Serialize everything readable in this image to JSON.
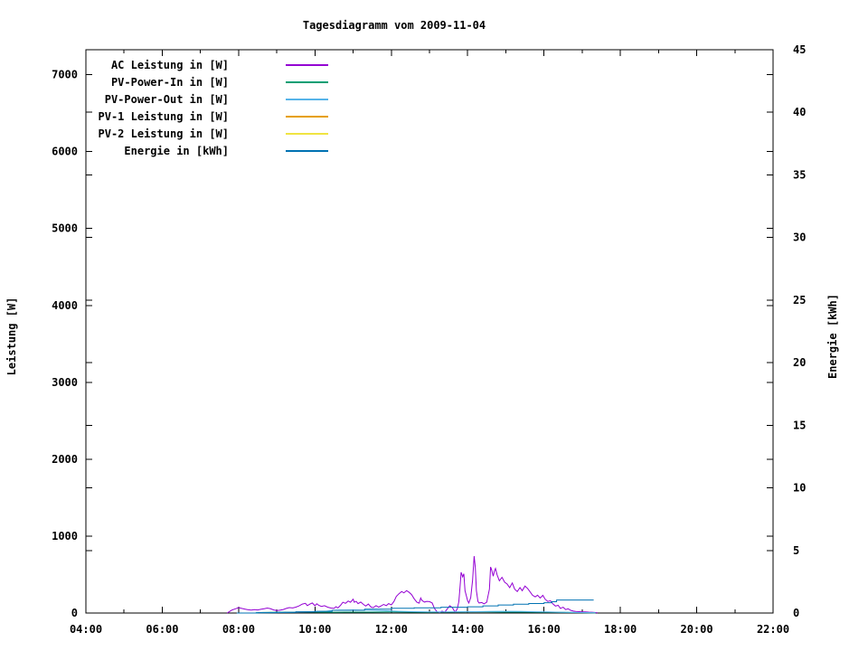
{
  "title": "Tagesdiagramm vom 2009-11-04",
  "colors": {
    "background": "#ffffff",
    "axis": "#000000"
  },
  "chart_data": {
    "type": "line",
    "title": "Tagesdiagramm vom 2009-11-04",
    "grid": false,
    "legend_position": "top-left",
    "x_axis": {
      "unit": "hour of day",
      "range": [
        4,
        22
      ],
      "major_ticks": [
        {
          "v": 4,
          "label": "04:00"
        },
        {
          "v": 6,
          "label": "06:00"
        },
        {
          "v": 8,
          "label": "08:00"
        },
        {
          "v": 10,
          "label": "10:00"
        },
        {
          "v": 12,
          "label": "12:00"
        },
        {
          "v": 14,
          "label": "14:00"
        },
        {
          "v": 16,
          "label": "16:00"
        },
        {
          "v": 18,
          "label": "18:00"
        },
        {
          "v": 20,
          "label": "20:00"
        },
        {
          "v": 22,
          "label": "22:00"
        }
      ],
      "minor_ticks": [
        5,
        7,
        9,
        11,
        13,
        15,
        17,
        19,
        21
      ]
    },
    "y_axis_left": {
      "label": "Leistung [W]",
      "range": [
        0,
        7325
      ],
      "ticks": [
        {
          "v": 0,
          "label": "0"
        },
        {
          "v": 1000,
          "label": "1000"
        },
        {
          "v": 2000,
          "label": "2000"
        },
        {
          "v": 3000,
          "label": "3000"
        },
        {
          "v": 4000,
          "label": "4000"
        },
        {
          "v": 5000,
          "label": "5000"
        },
        {
          "v": 6000,
          "label": "6000"
        },
        {
          "v": 7000,
          "label": "7000"
        }
      ]
    },
    "y_axis_right": {
      "label": "Energie [kWh]",
      "range": [
        0,
        45
      ],
      "ticks": [
        {
          "v": 0,
          "label": "0"
        },
        {
          "v": 5,
          "label": "5"
        },
        {
          "v": 10,
          "label": "10"
        },
        {
          "v": 15,
          "label": "15"
        },
        {
          "v": 20,
          "label": "20"
        },
        {
          "v": 25,
          "label": "25"
        },
        {
          "v": 30,
          "label": "30"
        },
        {
          "v": 35,
          "label": "35"
        },
        {
          "v": 40,
          "label": "40"
        },
        {
          "v": 45,
          "label": "45"
        }
      ]
    },
    "series": [
      {
        "name": "AC Leistung in [W]",
        "color": "#9400D3",
        "axis": "left",
        "render": "line",
        "points": [
          [
            7.7,
            0
          ],
          [
            7.75,
            15
          ],
          [
            7.83,
            40
          ],
          [
            7.92,
            55
          ],
          [
            8.0,
            70
          ],
          [
            8.08,
            60
          ],
          [
            8.17,
            50
          ],
          [
            8.25,
            42
          ],
          [
            8.33,
            38
          ],
          [
            8.42,
            44
          ],
          [
            8.5,
            40
          ],
          [
            8.58,
            48
          ],
          [
            8.67,
            56
          ],
          [
            8.75,
            65
          ],
          [
            8.83,
            58
          ],
          [
            8.92,
            40
          ],
          [
            9.0,
            32
          ],
          [
            9.08,
            36
          ],
          [
            9.17,
            46
          ],
          [
            9.25,
            60
          ],
          [
            9.33,
            70
          ],
          [
            9.42,
            66
          ],
          [
            9.5,
            76
          ],
          [
            9.58,
            92
          ],
          [
            9.67,
            116
          ],
          [
            9.75,
            126
          ],
          [
            9.8,
            96
          ],
          [
            9.87,
            116
          ],
          [
            9.93,
            130
          ],
          [
            10.0,
            95
          ],
          [
            10.05,
            120
          ],
          [
            10.1,
            100
          ],
          [
            10.17,
            86
          ],
          [
            10.25,
            95
          ],
          [
            10.33,
            76
          ],
          [
            10.42,
            65
          ],
          [
            10.5,
            60
          ],
          [
            10.55,
            82
          ],
          [
            10.6,
            66
          ],
          [
            10.67,
            100
          ],
          [
            10.73,
            140
          ],
          [
            10.8,
            126
          ],
          [
            10.87,
            156
          ],
          [
            10.93,
            140
          ],
          [
            11.0,
            180
          ],
          [
            11.03,
            140
          ],
          [
            11.08,
            152
          ],
          [
            11.13,
            122
          ],
          [
            11.2,
            142
          ],
          [
            11.27,
            112
          ],
          [
            11.33,
            90
          ],
          [
            11.4,
            116
          ],
          [
            11.47,
            76
          ],
          [
            11.53,
            70
          ],
          [
            11.6,
            96
          ],
          [
            11.67,
            76
          ],
          [
            11.73,
            92
          ],
          [
            11.8,
            112
          ],
          [
            11.87,
            96
          ],
          [
            11.93,
            122
          ],
          [
            12.0,
            106
          ],
          [
            12.07,
            150
          ],
          [
            12.13,
            215
          ],
          [
            12.2,
            250
          ],
          [
            12.27,
            280
          ],
          [
            12.33,
            262
          ],
          [
            12.4,
            292
          ],
          [
            12.47,
            268
          ],
          [
            12.53,
            240
          ],
          [
            12.6,
            185
          ],
          [
            12.67,
            140
          ],
          [
            12.73,
            128
          ],
          [
            12.77,
            195
          ],
          [
            12.8,
            165
          ],
          [
            12.87,
            142
          ],
          [
            12.93,
            152
          ],
          [
            13.0,
            148
          ],
          [
            13.07,
            130
          ],
          [
            13.13,
            60
          ],
          [
            13.2,
            15
          ],
          [
            13.27,
            5
          ],
          [
            13.33,
            25
          ],
          [
            13.4,
            10
          ],
          [
            13.47,
            55
          ],
          [
            13.53,
            95
          ],
          [
            13.6,
            70
          ],
          [
            13.67,
            10
          ],
          [
            13.73,
            55
          ],
          [
            13.77,
            150
          ],
          [
            13.8,
            340
          ],
          [
            13.83,
            530
          ],
          [
            13.87,
            470
          ],
          [
            13.9,
            510
          ],
          [
            13.93,
            290
          ],
          [
            14.0,
            160
          ],
          [
            14.03,
            130
          ],
          [
            14.08,
            200
          ],
          [
            14.13,
            430
          ],
          [
            14.17,
            740
          ],
          [
            14.2,
            590
          ],
          [
            14.23,
            290
          ],
          [
            14.27,
            150
          ],
          [
            14.3,
            130
          ],
          [
            14.37,
            136
          ],
          [
            14.43,
            120
          ],
          [
            14.5,
            140
          ],
          [
            14.57,
            310
          ],
          [
            14.6,
            600
          ],
          [
            14.63,
            560
          ],
          [
            14.67,
            480
          ],
          [
            14.7,
            545
          ],
          [
            14.73,
            580
          ],
          [
            14.77,
            500
          ],
          [
            14.83,
            420
          ],
          [
            14.9,
            465
          ],
          [
            14.97,
            400
          ],
          [
            15.03,
            380
          ],
          [
            15.1,
            330
          ],
          [
            15.17,
            390
          ],
          [
            15.23,
            310
          ],
          [
            15.3,
            280
          ],
          [
            15.37,
            330
          ],
          [
            15.43,
            290
          ],
          [
            15.5,
            350
          ],
          [
            15.57,
            320
          ],
          [
            15.63,
            280
          ],
          [
            15.7,
            230
          ],
          [
            15.77,
            210
          ],
          [
            15.83,
            232
          ],
          [
            15.9,
            195
          ],
          [
            15.97,
            230
          ],
          [
            16.03,
            180
          ],
          [
            16.1,
            150
          ],
          [
            16.17,
            160
          ],
          [
            16.23,
            120
          ],
          [
            16.3,
            90
          ],
          [
            16.37,
            100
          ],
          [
            16.43,
            60
          ],
          [
            16.5,
            75
          ],
          [
            16.57,
            45
          ],
          [
            16.63,
            55
          ],
          [
            16.7,
            35
          ],
          [
            16.77,
            25
          ],
          [
            16.83,
            20
          ],
          [
            16.92,
            18
          ],
          [
            17.0,
            15
          ],
          [
            17.08,
            14
          ],
          [
            17.17,
            12
          ],
          [
            17.25,
            10
          ],
          [
            17.33,
            7
          ],
          [
            17.4,
            4
          ]
        ]
      },
      {
        "name": "PV-Power-In in [W]",
        "color": "#009E73",
        "axis": "left",
        "render": "line",
        "points": [
          [
            8.45,
            6
          ],
          [
            9.0,
            10
          ],
          [
            9.5,
            12
          ],
          [
            10.0,
            12
          ],
          [
            10.5,
            10
          ],
          [
            11.0,
            12
          ],
          [
            11.5,
            12
          ],
          [
            12.0,
            14
          ],
          [
            12.5,
            12
          ],
          [
            13.0,
            10
          ],
          [
            13.5,
            12
          ],
          [
            14.0,
            14
          ],
          [
            14.5,
            14
          ],
          [
            15.0,
            12
          ],
          [
            15.5,
            12
          ],
          [
            16.0,
            10
          ],
          [
            16.5,
            8
          ],
          [
            17.0,
            5
          ],
          [
            17.35,
            4
          ]
        ]
      },
      {
        "name": "PV-Power-Out in [W]",
        "color": "#56B4E9",
        "axis": "left",
        "render": "line",
        "points": [
          [
            8.45,
            3
          ],
          [
            9.0,
            6
          ],
          [
            9.5,
            10
          ],
          [
            9.9,
            16
          ],
          [
            10.3,
            24
          ],
          [
            10.45,
            34
          ],
          [
            10.6,
            38
          ],
          [
            11.0,
            40
          ],
          [
            11.4,
            36
          ],
          [
            11.8,
            30
          ],
          [
            12.2,
            22
          ],
          [
            12.6,
            18
          ],
          [
            13.0,
            15
          ],
          [
            13.4,
            14
          ],
          [
            13.8,
            16
          ],
          [
            14.2,
            18
          ],
          [
            14.6,
            20
          ],
          [
            15.0,
            22
          ],
          [
            15.4,
            20
          ],
          [
            15.8,
            16
          ],
          [
            16.1,
            14
          ],
          [
            16.4,
            10
          ],
          [
            16.7,
            8
          ],
          [
            17.0,
            6
          ],
          [
            17.35,
            3
          ]
        ]
      },
      {
        "name": "PV-1 Leistung in [W]",
        "color": "#E69F00",
        "axis": "left",
        "render": "line",
        "points": []
      },
      {
        "name": "PV-2 Leistung in [W]",
        "color": "#F0E442",
        "axis": "left",
        "render": "line",
        "points": []
      },
      {
        "name": "Energie in [kWh]",
        "color": "#0072B2",
        "axis": "right",
        "render": "steps",
        "points": [
          [
            7.95,
            0
          ],
          [
            8.5,
            0.03
          ],
          [
            9.0,
            0.06
          ],
          [
            9.5,
            0.1
          ],
          [
            10.0,
            0.14
          ],
          [
            10.45,
            0.22
          ],
          [
            11.3,
            0.3
          ],
          [
            12.0,
            0.38
          ],
          [
            12.6,
            0.42
          ],
          [
            13.3,
            0.46
          ],
          [
            14.0,
            0.5
          ],
          [
            14.4,
            0.57
          ],
          [
            14.8,
            0.64
          ],
          [
            15.2,
            0.7
          ],
          [
            15.6,
            0.76
          ],
          [
            16.0,
            0.82
          ],
          [
            16.2,
            0.9
          ],
          [
            16.33,
            1.04
          ],
          [
            17.3,
            1.04
          ]
        ]
      }
    ]
  }
}
